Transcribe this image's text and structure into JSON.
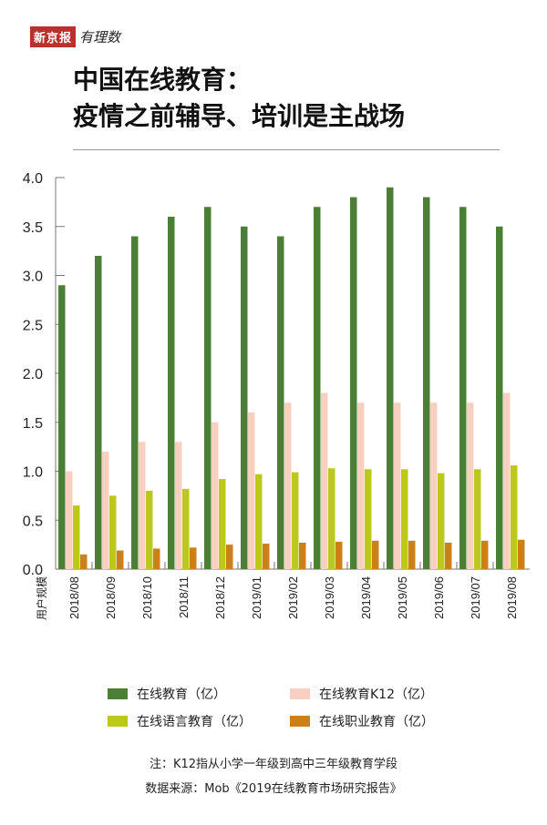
{
  "logo": {
    "brand": "新京报",
    "sub": "有理数"
  },
  "title": [
    "中国在线教育：",
    "疫情之前辅导、培训是主战场"
  ],
  "chart_data": {
    "type": "bar",
    "title": "中国在线教育：疫情之前辅导、培训是主战场",
    "ylabel": "用户规模",
    "ylim": [
      0,
      4.0
    ],
    "yticks": [
      "0.0",
      "0.5",
      "1.0",
      "1.5",
      "2.0",
      "2.5",
      "3.0",
      "3.5",
      "4.0"
    ],
    "categories": [
      "2018/08",
      "2018/09",
      "2018/10",
      "2018/11",
      "2018/12",
      "2019/01",
      "2019/02",
      "2019/03",
      "2019/04",
      "2019/05",
      "2019/06",
      "2019/07",
      "2019/08"
    ],
    "series": [
      {
        "name": "在线教育（亿）",
        "color": "#4a7f35",
        "values": [
          2.9,
          3.2,
          3.4,
          3.6,
          3.7,
          3.5,
          3.4,
          3.7,
          3.8,
          3.9,
          3.8,
          3.7,
          3.5
        ]
      },
      {
        "name": "在线教育K12（亿）",
        "color": "#f8d0c2",
        "values": [
          1.0,
          1.2,
          1.3,
          1.3,
          1.5,
          1.6,
          1.7,
          1.8,
          1.7,
          1.7,
          1.7,
          1.7,
          1.8
        ]
      },
      {
        "name": "在线语言教育（亿）",
        "color": "#bcc81c",
        "values": [
          0.65,
          0.75,
          0.8,
          0.82,
          0.92,
          0.97,
          0.99,
          1.03,
          1.02,
          1.02,
          0.98,
          1.02,
          1.06
        ]
      },
      {
        "name": "在线职业教育（亿）",
        "color": "#cc8018",
        "values": [
          0.15,
          0.19,
          0.21,
          0.22,
          0.25,
          0.26,
          0.27,
          0.28,
          0.29,
          0.29,
          0.27,
          0.29,
          0.3
        ]
      }
    ],
    "legend": "bottom"
  },
  "notes": {
    "note": "注：K12指从小学一年级到高中三年级教育学段",
    "source": "数据来源：Mob《2019在线教育市场研究报告》"
  }
}
